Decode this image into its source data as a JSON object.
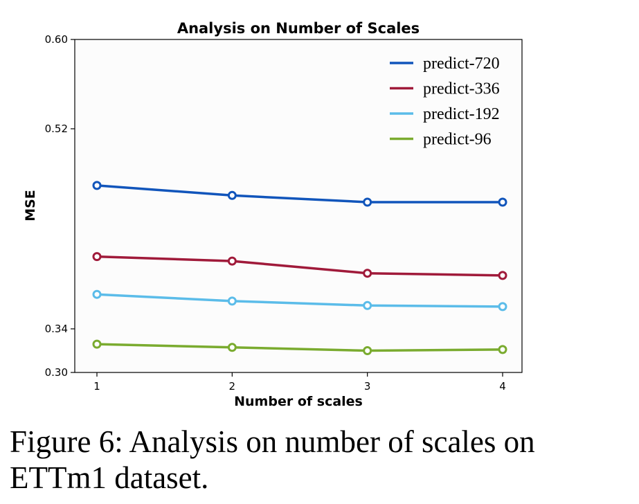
{
  "chart_data": {
    "type": "line",
    "title": "Analysis on Number of Scales",
    "xlabel": "Number of scales",
    "ylabel": "MSE",
    "x": [
      1,
      2,
      3,
      4
    ],
    "x_ticks": [
      "1",
      "2",
      "3",
      "4"
    ],
    "y_ticks": [
      0.3,
      0.34,
      0.52,
      0.6
    ],
    "y_tick_labels": [
      "0.30",
      "0.34",
      "0.52",
      "0.60"
    ],
    "ylim": [
      0.3,
      0.6
    ],
    "grid": false,
    "legend_position": "top-right",
    "series": [
      {
        "name": "predict-720",
        "color": "#1155bb",
        "values": [
          0.469,
          0.46,
          0.454,
          0.454
        ]
      },
      {
        "name": "predict-336",
        "color": "#a01a3a",
        "values": [
          0.405,
          0.401,
          0.39,
          0.388
        ]
      },
      {
        "name": "predict-192",
        "color": "#5bbce9",
        "values": [
          0.371,
          0.365,
          0.361,
          0.36
        ]
      },
      {
        "name": "predict-96",
        "color": "#7aab2f",
        "values": [
          0.326,
          0.323,
          0.32,
          0.321
        ]
      }
    ]
  },
  "caption": "Figure 6: Analysis on number of scales on ETTm1 dataset."
}
